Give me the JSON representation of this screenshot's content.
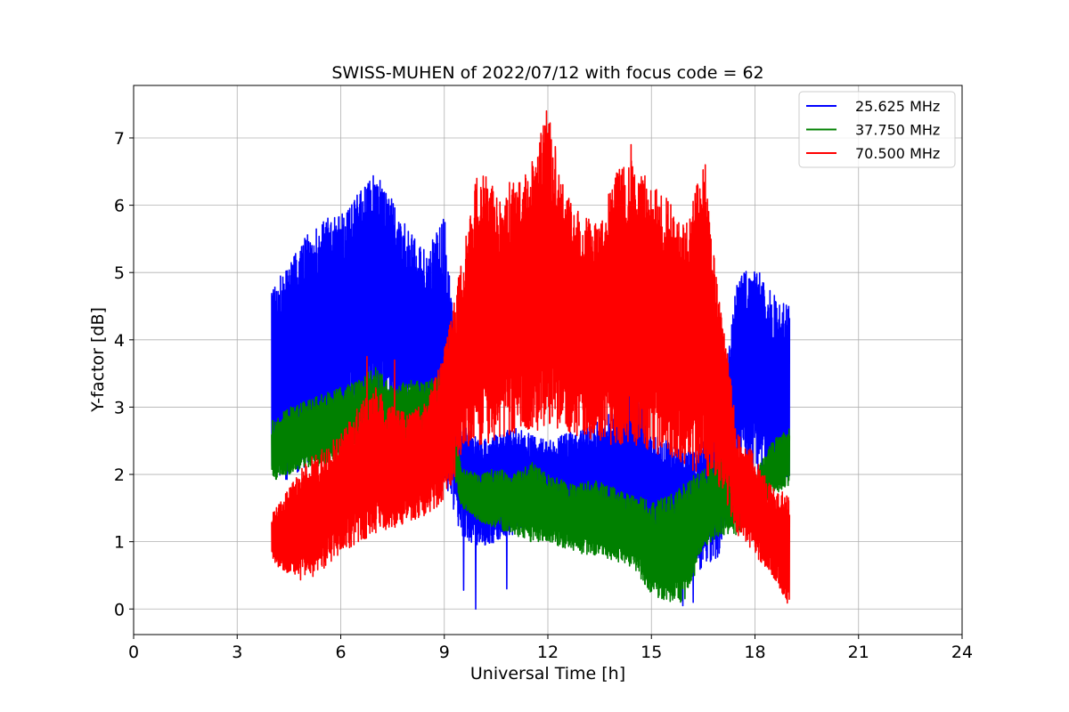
{
  "chart_data": {
    "type": "line",
    "title": "SWISS-MUHEN of 2022/07/12 with focus code = 62",
    "xlabel": "Universal Time [h]",
    "ylabel": "Y-factor [dB]",
    "xlim": [
      0,
      24
    ],
    "ylim": [
      -0.38,
      7.78
    ],
    "xticks": [
      0,
      3,
      6,
      9,
      12,
      15,
      18,
      21,
      24
    ],
    "yticks": [
      0,
      1,
      2,
      3,
      4,
      5,
      6,
      7
    ],
    "grid": true,
    "legend_position": "top-right",
    "x_range_observed": [
      4.0,
      19.0
    ],
    "series": [
      {
        "name": "25.625 MHz",
        "color": "#0000ff",
        "envelope_x": [
          4.0,
          4.5,
          5.0,
          5.5,
          6.0,
          6.5,
          7.0,
          7.5,
          8.0,
          8.5,
          9.0,
          9.5,
          10.0,
          10.5,
          11.0,
          11.5,
          12.0,
          12.5,
          13.0,
          13.5,
          14.0,
          14.5,
          15.0,
          15.5,
          16.0,
          16.5,
          17.0,
          17.5,
          18.0,
          18.5,
          19.0
        ],
        "envelope_max": [
          4.8,
          5.1,
          5.6,
          5.8,
          5.9,
          6.2,
          6.5,
          6.1,
          5.6,
          5.3,
          5.9,
          2.8,
          2.5,
          2.6,
          2.7,
          2.6,
          2.5,
          2.6,
          2.7,
          2.8,
          3.0,
          3.6,
          2.6,
          2.5,
          2.4,
          2.6,
          3.2,
          5.0,
          5.1,
          4.7,
          4.5
        ],
        "envelope_min": [
          2.0,
          1.9,
          2.1,
          2.3,
          2.6,
          2.8,
          2.9,
          2.8,
          2.7,
          2.5,
          1.8,
          1.1,
          0.9,
          1.0,
          1.1,
          1.2,
          1.2,
          1.1,
          1.0,
          1.0,
          1.2,
          1.0,
          0.7,
          0.5,
          0.4,
          0.6,
          0.8,
          2.2,
          2.0,
          1.9,
          1.8
        ],
        "min_points": [
          [
            9.55,
            0.28
          ],
          [
            9.9,
            0.0
          ],
          [
            10.8,
            0.3
          ],
          [
            15.9,
            0.05
          ],
          [
            16.2,
            0.1
          ]
        ]
      },
      {
        "name": "37.750 MHz",
        "color": "#008000",
        "envelope_x": [
          4.0,
          4.5,
          5.0,
          5.5,
          6.0,
          6.5,
          7.0,
          7.5,
          8.0,
          8.5,
          9.0,
          9.5,
          10.0,
          10.5,
          11.0,
          11.5,
          12.0,
          12.5,
          13.0,
          13.5,
          14.0,
          14.5,
          15.0,
          15.5,
          16.0,
          16.5,
          17.0,
          17.5,
          18.0,
          18.5,
          19.0
        ],
        "envelope_max": [
          2.8,
          3.0,
          3.1,
          3.2,
          3.3,
          3.4,
          3.6,
          3.3,
          3.4,
          3.4,
          3.5,
          2.1,
          2.0,
          2.1,
          2.0,
          2.2,
          2.0,
          1.9,
          1.9,
          1.9,
          1.8,
          1.7,
          1.6,
          1.7,
          1.9,
          2.1,
          2.3,
          2.0,
          2.0,
          2.5,
          2.7
        ],
        "envelope_min": [
          1.9,
          2.0,
          2.1,
          2.1,
          2.2,
          2.3,
          2.4,
          2.4,
          2.5,
          2.5,
          2.6,
          1.5,
          1.3,
          1.2,
          1.1,
          1.0,
          1.0,
          0.9,
          0.8,
          0.8,
          0.7,
          0.6,
          0.2,
          0.1,
          0.1,
          0.9,
          1.1,
          1.1,
          1.4,
          1.7,
          1.8
        ]
      },
      {
        "name": "70.500 MHz",
        "color": "#ff0000",
        "envelope_x": [
          4.0,
          4.5,
          5.0,
          5.5,
          6.0,
          6.5,
          7.0,
          7.5,
          8.0,
          8.5,
          9.0,
          9.5,
          10.0,
          10.5,
          11.0,
          11.5,
          12.0,
          12.5,
          13.0,
          13.5,
          14.0,
          14.5,
          15.0,
          15.5,
          16.0,
          16.5,
          17.0,
          17.5,
          18.0,
          18.5,
          19.0
        ],
        "envelope_max": [
          1.4,
          1.8,
          2.2,
          2.4,
          2.6,
          3.0,
          3.3,
          3.0,
          2.9,
          3.1,
          3.9,
          5.2,
          6.6,
          6.2,
          6.4,
          6.6,
          7.4,
          6.3,
          5.8,
          5.9,
          6.6,
          6.7,
          6.3,
          6.1,
          5.8,
          6.6,
          4.6,
          2.6,
          2.3,
          1.8,
          1.7
        ],
        "envelope_min": [
          0.7,
          0.5,
          0.4,
          0.6,
          0.8,
          1.0,
          1.1,
          1.2,
          1.3,
          1.4,
          1.6,
          2.2,
          2.4,
          2.5,
          2.6,
          2.6,
          2.7,
          2.6,
          2.5,
          2.5,
          2.4,
          2.4,
          2.3,
          2.2,
          2.1,
          2.0,
          1.8,
          1.1,
          0.8,
          0.5,
          0.0
        ],
        "peak_points": [
          [
            6.75,
            3.75
          ],
          [
            7.55,
            3.7
          ],
          [
            9.35,
            4.0
          ],
          [
            9.75,
            3.5
          ],
          [
            10.0,
            5.7
          ],
          [
            10.3,
            6.1
          ],
          [
            11.95,
            7.4
          ],
          [
            12.45,
            5.8
          ],
          [
            14.4,
            6.9
          ],
          [
            16.55,
            6.6
          ]
        ]
      }
    ]
  }
}
